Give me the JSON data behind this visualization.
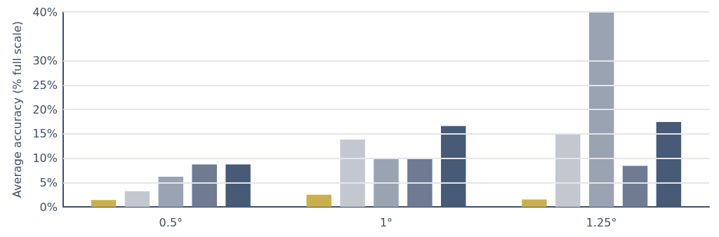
{
  "chart_data": {
    "type": "bar",
    "ylabel": "Average accuracy (% full scale)",
    "categories": [
      "0.5°",
      "1°",
      "1.25°"
    ],
    "series": [
      {
        "color": "#c9b04a",
        "values": [
          1.4,
          2.5,
          1.5
        ]
      },
      {
        "color": "#c3c7d0",
        "values": [
          3.2,
          13.8,
          15
        ]
      },
      {
        "color": "#9aa3b2",
        "values": [
          6.2,
          10,
          40
        ]
      },
      {
        "color": "#6e7b93",
        "values": [
          8.7,
          10,
          8.4
        ]
      },
      {
        "color": "#475a76",
        "values": [
          8.7,
          16.6,
          17.4
        ]
      }
    ],
    "ylim": [
      0,
      40
    ],
    "yticks": [
      {
        "value": 0,
        "label": "0%"
      },
      {
        "value": 5,
        "label": "5%"
      },
      {
        "value": 10,
        "label": "10%"
      },
      {
        "value": 15,
        "label": "15%"
      },
      {
        "value": 20,
        "label": "20%"
      },
      {
        "value": 25,
        "label": "25%"
      },
      {
        "value": 30,
        "label": "30%"
      },
      {
        "value": 40,
        "label": "40%"
      }
    ],
    "grid": "y"
  }
}
